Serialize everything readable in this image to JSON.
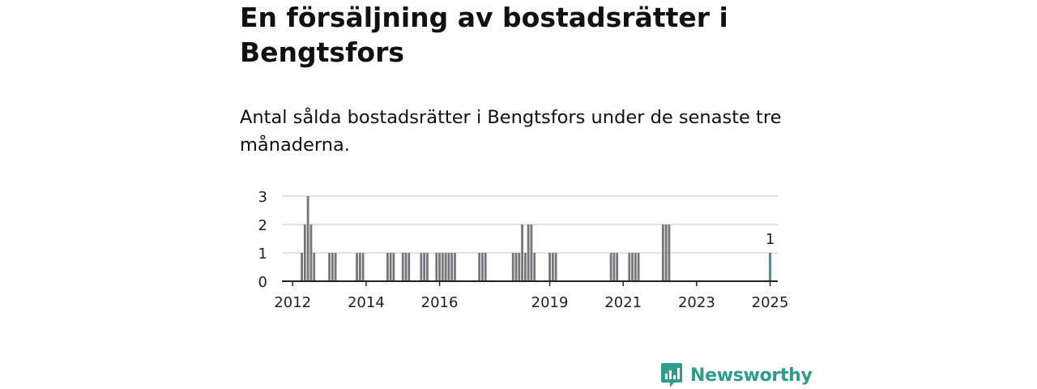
{
  "title": "En försäljning av bostadsrätter i Bengtsfors",
  "subtitle": "Antal sålda bostadsrätter i Bengtsfors under de senaste tre månaderna.",
  "brand": {
    "name": "Newsworthy",
    "color": "#2e9d8c"
  },
  "colors": {
    "bar": "#75757a",
    "highlight": "#2e9d8c",
    "grid": "#d9d9d9",
    "axis": "#222222"
  },
  "chart_data": {
    "type": "bar",
    "ylim": [
      0,
      3
    ],
    "yticks": [
      0,
      1,
      2,
      3
    ],
    "xticks": [
      "2012",
      "2014",
      "2016",
      "2019",
      "2021",
      "2023",
      "2025"
    ],
    "xlim": [
      "2011-10",
      "2025-04"
    ],
    "grid": true,
    "series": [
      {
        "values": [
          {
            "x": "2012-04",
            "y": 1
          },
          {
            "x": "2012-05",
            "y": 2
          },
          {
            "x": "2012-06",
            "y": 3
          },
          {
            "x": "2012-07",
            "y": 2
          },
          {
            "x": "2012-08",
            "y": 1
          },
          {
            "x": "2013-01",
            "y": 1
          },
          {
            "x": "2013-02",
            "y": 1
          },
          {
            "x": "2013-03",
            "y": 1
          },
          {
            "x": "2013-10",
            "y": 1
          },
          {
            "x": "2013-11",
            "y": 1
          },
          {
            "x": "2013-12",
            "y": 1
          },
          {
            "x": "2014-08",
            "y": 1
          },
          {
            "x": "2014-09",
            "y": 1
          },
          {
            "x": "2014-10",
            "y": 1
          },
          {
            "x": "2015-01",
            "y": 1
          },
          {
            "x": "2015-02",
            "y": 1
          },
          {
            "x": "2015-03",
            "y": 1
          },
          {
            "x": "2015-07",
            "y": 1
          },
          {
            "x": "2015-08",
            "y": 1
          },
          {
            "x": "2015-09",
            "y": 1
          },
          {
            "x": "2015-12",
            "y": 1
          },
          {
            "x": "2016-01",
            "y": 1
          },
          {
            "x": "2016-02",
            "y": 1
          },
          {
            "x": "2016-03",
            "y": 1
          },
          {
            "x": "2016-04",
            "y": 1
          },
          {
            "x": "2016-05",
            "y": 1
          },
          {
            "x": "2016-06",
            "y": 1
          },
          {
            "x": "2017-02",
            "y": 1
          },
          {
            "x": "2017-03",
            "y": 1
          },
          {
            "x": "2017-04",
            "y": 1
          },
          {
            "x": "2018-01",
            "y": 1
          },
          {
            "x": "2018-02",
            "y": 1
          },
          {
            "x": "2018-03",
            "y": 1
          },
          {
            "x": "2018-04",
            "y": 2
          },
          {
            "x": "2018-05",
            "y": 1
          },
          {
            "x": "2018-06",
            "y": 2
          },
          {
            "x": "2018-07",
            "y": 2
          },
          {
            "x": "2018-08",
            "y": 1
          },
          {
            "x": "2019-01",
            "y": 1
          },
          {
            "x": "2019-02",
            "y": 1
          },
          {
            "x": "2019-03",
            "y": 1
          },
          {
            "x": "2020-09",
            "y": 1
          },
          {
            "x": "2020-10",
            "y": 1
          },
          {
            "x": "2020-11",
            "y": 1
          },
          {
            "x": "2021-03",
            "y": 1
          },
          {
            "x": "2021-04",
            "y": 1
          },
          {
            "x": "2021-05",
            "y": 1
          },
          {
            "x": "2021-06",
            "y": 1
          },
          {
            "x": "2022-02",
            "y": 2
          },
          {
            "x": "2022-03",
            "y": 2
          },
          {
            "x": "2022-04",
            "y": 2
          }
        ]
      }
    ],
    "highlight": {
      "x": "2025-01",
      "y": 1,
      "label": "1"
    }
  }
}
